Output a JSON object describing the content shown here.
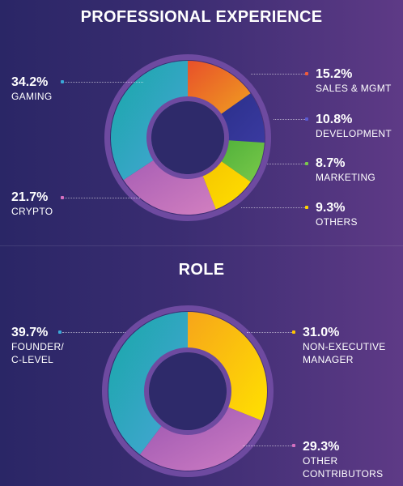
{
  "chart_data": [
    {
      "type": "pie",
      "title": "PROFESSIONAL EXPERIENCE",
      "slices": [
        {
          "label": "SALES & MGMT",
          "value": 15.2,
          "display": "15.2%",
          "color": "#e8502a",
          "color2": "#f0a020"
        },
        {
          "label": "DEVELOPMENT",
          "value": 10.8,
          "display": "10.8%",
          "color": "#2a2f8a",
          "color2": "#3a3aa0"
        },
        {
          "label": "MARKETING",
          "value": 8.7,
          "display": "8.7%",
          "color": "#4fb03a",
          "color2": "#7ac94a"
        },
        {
          "label": "OTHERS",
          "value": 9.3,
          "display": "9.3%",
          "color": "#f5c400",
          "color2": "#ffe000"
        },
        {
          "label": "CRYPTO",
          "value": 21.7,
          "display": "21.7%",
          "color": "#a65db4",
          "color2": "#d27fc0"
        },
        {
          "label": "GAMING",
          "value": 34.2,
          "display": "34.2%",
          "color": "#17a7a8",
          "color2": "#4aa6d8"
        }
      ]
    },
    {
      "type": "pie",
      "title": "ROLE",
      "slices": [
        {
          "label": "NON-EXECUTIVE MANAGER",
          "value": 31.0,
          "display": "31.0%",
          "color": "#f7a51a",
          "color2": "#ffe100"
        },
        {
          "label": "OTHER CONTRIBUTORS",
          "value": 29.3,
          "display": "29.3%",
          "color": "#9a55b0",
          "color2": "#d07ec4"
        },
        {
          "label": "FOUNDER/ C-LEVEL",
          "value": 39.7,
          "display": "39.7%",
          "color": "#17a7a8",
          "color2": "#4aa6d8"
        }
      ]
    }
  ],
  "labels": {
    "exp": {
      "gaming_pct": "34.2%",
      "gaming_name": "GAMING",
      "crypto_pct": "21.7%",
      "crypto_name": "CRYPTO",
      "sales_pct": "15.2%",
      "sales_name": "SALES & MGMT",
      "dev_pct": "10.8%",
      "dev_name": "DEVELOPMENT",
      "mkt_pct": "8.7%",
      "mkt_name": "MARKETING",
      "oth_pct": "9.3%",
      "oth_name": "OTHERS"
    },
    "role": {
      "founder_pct": "39.7%",
      "founder_name_1": "FOUNDER/",
      "founder_name_2": "C-LEVEL",
      "nem_pct": "31.0%",
      "nem_name_1": "NON-EXECUTIVE",
      "nem_name_2": "MANAGER",
      "oc_pct": "29.3%",
      "oc_name_1": "OTHER",
      "oc_name_2": "CONTRIBUTORS"
    }
  },
  "colors": {
    "ring_outer": "#6e4aa0",
    "hole": "#2e2a6a",
    "gaming_marker": "#3aa8d8",
    "crypto_marker": "#d56fc0",
    "sales_marker": "#f05a3a",
    "dev_marker": "#5a5ad0",
    "mkt_marker": "#7ac94a",
    "oth_marker": "#ffd400",
    "founder_marker": "#3aa8d8",
    "nem_marker": "#ffc400",
    "oc_marker": "#d56fc0"
  }
}
